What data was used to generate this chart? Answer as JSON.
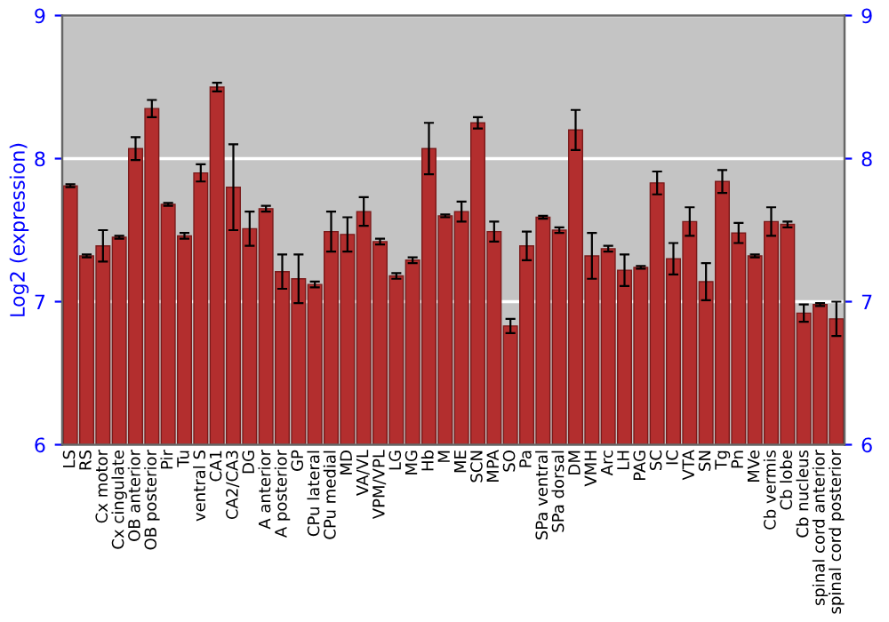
{
  "chart_data": {
    "type": "bar",
    "ylabel": "Log2 (expression)",
    "categories": [
      "LS",
      "RS",
      "Cx motor",
      "Cx cingulate",
      "OB anterior",
      "OB posterior",
      "Pir",
      "Tu",
      "ventral S",
      "CA1",
      "CA2/CA3",
      "DG",
      "A anterior",
      "A posterior",
      "GP",
      "CPu lateral",
      "CPu medial",
      "MD",
      "VA/VL",
      "VPM/VPL",
      "LG",
      "MG",
      "Hb",
      "M",
      "ME",
      "SCN",
      "MPA",
      "SO",
      "Pa",
      "SPa ventral",
      "SPa dorsal",
      "DM",
      "VMH",
      "Arc",
      "LH",
      "PAG",
      "SC",
      "IC",
      "VTA",
      "SN",
      "Tg",
      "Pn",
      "MVe",
      "Cb vermis",
      "Cb lobe",
      "Cb nucleus",
      "spinal cord anterior",
      "spinal cord posterior"
    ],
    "values": [
      7.81,
      7.32,
      7.39,
      7.45,
      8.07,
      8.35,
      7.68,
      7.46,
      7.9,
      8.5,
      7.8,
      7.51,
      7.65,
      7.21,
      7.16,
      7.12,
      7.49,
      7.47,
      7.63,
      7.42,
      7.18,
      7.29,
      8.07,
      7.6,
      7.63,
      8.25,
      7.49,
      6.83,
      7.39,
      7.59,
      7.5,
      8.2,
      7.32,
      7.37,
      7.22,
      7.24,
      7.83,
      7.3,
      7.56,
      7.14,
      7.84,
      7.48,
      7.32,
      7.56,
      7.54,
      6.92,
      6.98,
      6.88
    ],
    "errors": [
      0.01,
      0.01,
      0.11,
      0.01,
      0.08,
      0.06,
      0.01,
      0.02,
      0.06,
      0.03,
      0.3,
      0.12,
      0.02,
      0.12,
      0.17,
      0.02,
      0.14,
      0.12,
      0.1,
      0.02,
      0.02,
      0.02,
      0.18,
      0.01,
      0.07,
      0.04,
      0.07,
      0.05,
      0.1,
      0.01,
      0.02,
      0.14,
      0.16,
      0.02,
      0.11,
      0.01,
      0.08,
      0.11,
      0.1,
      0.13,
      0.08,
      0.07,
      0.01,
      0.1,
      0.02,
      0.06,
      0.01,
      0.12
    ],
    "color": "#b32e2e",
    "ylim": [
      6,
      9
    ],
    "yticks": [
      6,
      7,
      8,
      9
    ],
    "y2lim": [
      6,
      9
    ],
    "y2ticks": [
      6,
      7,
      8,
      9
    ],
    "grid": "y"
  }
}
